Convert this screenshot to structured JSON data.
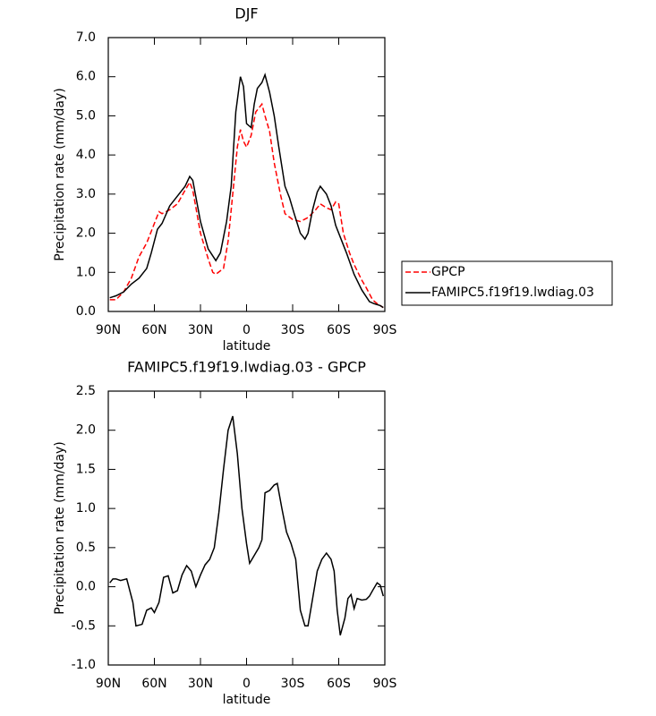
{
  "chart_data": [
    {
      "type": "line",
      "title": "DJF",
      "xlabel": "latitude",
      "ylabel": "Precipitation rate (mm/day)",
      "xlim": [
        90,
        -90
      ],
      "xticks": [
        {
          "value": 90,
          "label": "90N"
        },
        {
          "value": 60,
          "label": "60N"
        },
        {
          "value": 30,
          "label": "30N"
        },
        0,
        {
          "value": -30,
          "label": "30S"
        },
        {
          "value": -60,
          "label": "60S"
        },
        {
          "value": -90,
          "label": "90S"
        }
      ],
      "ylim": [
        0,
        7
      ],
      "yticks": [
        {
          "value": 0,
          "label": "0.0"
        },
        {
          "value": 1,
          "label": "1.0"
        },
        {
          "value": 2,
          "label": "2.0"
        },
        {
          "value": 3,
          "label": "3.0"
        },
        {
          "value": 4,
          "label": "4.0"
        },
        {
          "value": 5,
          "label": "5.0"
        },
        {
          "value": 6,
          "label": "6.0"
        },
        {
          "value": 7,
          "label": "7.0"
        }
      ],
      "legend": "right-outside",
      "series": [
        {
          "name": "GPCP",
          "color": "#ff0000",
          "line_style": "dashed",
          "x": [
            89,
            85,
            80,
            75,
            70,
            65,
            60,
            57,
            55,
            50,
            45,
            40,
            37,
            35,
            30,
            25,
            22,
            20,
            15,
            12,
            9,
            6,
            4,
            2,
            0,
            -3,
            -6,
            -10,
            -12,
            -15,
            -18,
            -22,
            -25,
            -30,
            -35,
            -40,
            -45,
            -48,
            -52,
            -55,
            -58,
            -60,
            -63,
            -67,
            -70,
            -75,
            -78,
            -82,
            -85,
            -89
          ],
          "values": [
            0.3,
            0.3,
            0.5,
            0.85,
            1.4,
            1.75,
            2.25,
            2.55,
            2.5,
            2.6,
            2.75,
            3.1,
            3.3,
            3.1,
            2.0,
            1.35,
            1.0,
            0.95,
            1.1,
            1.8,
            3.0,
            4.2,
            4.65,
            4.35,
            4.2,
            4.5,
            5.1,
            5.3,
            5.0,
            4.6,
            3.8,
            3.0,
            2.5,
            2.35,
            2.3,
            2.4,
            2.6,
            2.75,
            2.65,
            2.6,
            2.8,
            2.75,
            2.0,
            1.5,
            1.2,
            0.8,
            0.6,
            0.3,
            0.2,
            0.1
          ]
        },
        {
          "name": "FAMIPC5.f19f19.lwdiag.03",
          "color": "#000000",
          "line_style": "solid",
          "x": [
            89,
            85,
            80,
            75,
            70,
            65,
            62,
            58,
            55,
            50,
            45,
            40,
            37,
            35,
            30,
            25,
            20,
            17,
            13,
            10,
            7,
            4,
            2,
            0,
            -3,
            -5,
            -7,
            -10,
            -12,
            -15,
            -18,
            -21,
            -25,
            -28,
            -31,
            -35,
            -38,
            -40,
            -43,
            -46,
            -48,
            -52,
            -55,
            -58,
            -62,
            -65,
            -70,
            -75,
            -80,
            -83,
            -87,
            -89
          ],
          "values": [
            0.35,
            0.4,
            0.5,
            0.7,
            0.85,
            1.1,
            1.5,
            2.1,
            2.25,
            2.7,
            2.95,
            3.2,
            3.45,
            3.35,
            2.3,
            1.6,
            1.3,
            1.5,
            2.3,
            3.2,
            5.1,
            6.0,
            5.75,
            4.8,
            4.7,
            5.3,
            5.7,
            5.85,
            6.05,
            5.6,
            5.0,
            4.2,
            3.2,
            2.9,
            2.5,
            2.0,
            1.85,
            2.0,
            2.6,
            3.05,
            3.2,
            3.0,
            2.7,
            2.2,
            1.8,
            1.5,
            0.95,
            0.55,
            0.25,
            0.2,
            0.15,
            0.1
          ]
        }
      ]
    },
    {
      "type": "line",
      "title": "FAMIPC5.f19f19.lwdiag.03 - GPCP",
      "xlabel": "latitude",
      "ylabel": "Precipitation rate (mm/day)",
      "xlim": [
        90,
        -90
      ],
      "xticks": [
        {
          "value": 90,
          "label": "90N"
        },
        {
          "value": 60,
          "label": "60N"
        },
        {
          "value": 30,
          "label": "30N"
        },
        0,
        {
          "value": -30,
          "label": "30S"
        },
        {
          "value": -60,
          "label": "60S"
        },
        {
          "value": -90,
          "label": "90S"
        }
      ],
      "ylim": [
        -1,
        2.5
      ],
      "yticks": [
        {
          "value": -1,
          "label": "-1.0"
        },
        {
          "value": -0.5,
          "label": "-0.5"
        },
        {
          "value": 0,
          "label": "0.0"
        },
        0.5,
        {
          "value": 1,
          "label": "1.0"
        },
        1.5,
        {
          "value": 2,
          "label": "2.0"
        },
        2.5
      ],
      "series": [
        {
          "color": "#000000",
          "line_style": "solid",
          "x": [
            89,
            87,
            85,
            82,
            78,
            74,
            72,
            68,
            65,
            62,
            60,
            57,
            54,
            51,
            48,
            45,
            42,
            39,
            36,
            33,
            30,
            27,
            24,
            21,
            18,
            15,
            12,
            9,
            6,
            3,
            0,
            -2,
            -5,
            -8,
            -10,
            -12,
            -15,
            -18,
            -20,
            -23,
            -26,
            -29,
            -32,
            -35,
            -38,
            -40,
            -43,
            -46,
            -49,
            -52,
            -55,
            -57,
            -59,
            -61,
            -64,
            -66,
            -68,
            -70,
            -72,
            -75,
            -78,
            -80,
            -82,
            -85,
            -87,
            -89
          ],
          "values": [
            0.05,
            0.1,
            0.1,
            0.08,
            0.1,
            -0.2,
            -0.5,
            -0.48,
            -0.3,
            -0.27,
            -0.33,
            -0.2,
            0.12,
            0.14,
            -0.08,
            -0.05,
            0.15,
            0.27,
            0.2,
            0.0,
            0.15,
            0.28,
            0.35,
            0.5,
            0.95,
            1.5,
            2.0,
            2.18,
            1.7,
            1.0,
            0.55,
            0.3,
            0.4,
            0.5,
            0.6,
            1.2,
            1.23,
            1.3,
            1.32,
            1.0,
            0.7,
            0.55,
            0.35,
            -0.3,
            -0.5,
            -0.5,
            -0.15,
            0.2,
            0.35,
            0.43,
            0.35,
            0.2,
            -0.3,
            -0.62,
            -0.4,
            -0.15,
            -0.1,
            -0.28,
            -0.15,
            -0.17,
            -0.16,
            -0.12,
            -0.05,
            0.05,
            0.02,
            -0.12
          ]
        }
      ]
    }
  ]
}
